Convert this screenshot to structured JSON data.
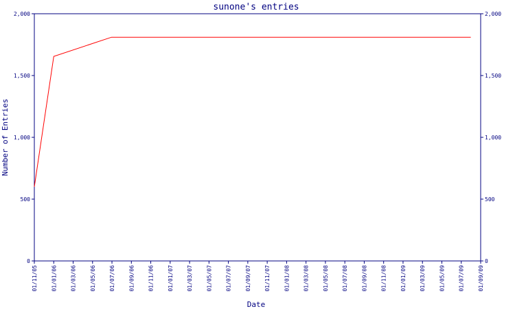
{
  "chart_data": {
    "type": "line",
    "title": "sunone's entries",
    "xlabel": "Date",
    "ylabel": "Number of Entries",
    "ylim": [
      0,
      2000
    ],
    "y_ticks": [
      0,
      500,
      1000,
      1500,
      2000
    ],
    "y_tick_labels": [
      "0",
      "500",
      "1,000",
      "1,500",
      "2,000"
    ],
    "x_ticks": [
      "01/11/05",
      "01/01/06",
      "01/03/06",
      "01/05/06",
      "01/07/06",
      "01/09/06",
      "01/11/06",
      "01/01/07",
      "01/03/07",
      "01/05/07",
      "01/07/07",
      "01/09/07",
      "01/11/07",
      "01/01/08",
      "01/03/08",
      "01/05/08",
      "01/07/08",
      "01/09/08",
      "01/11/08",
      "01/01/09",
      "01/03/09",
      "01/05/09",
      "01/07/09",
      "01/09/09"
    ],
    "xlim": [
      "2005-11-01",
      "2009-09-01"
    ],
    "series": [
      {
        "color": "#ff0000",
        "points": [
          {
            "x": "2005-11-01",
            "y": 600
          },
          {
            "x": "2006-01-01",
            "y": 1655
          },
          {
            "x": "2006-07-01",
            "y": 1810
          },
          {
            "x": "2009-08-01",
            "y": 1810
          }
        ]
      }
    ],
    "grid": false,
    "right_axis": true,
    "colors": {
      "axis": "#000080",
      "line": "#ff0000",
      "background": "#ffffff"
    }
  }
}
